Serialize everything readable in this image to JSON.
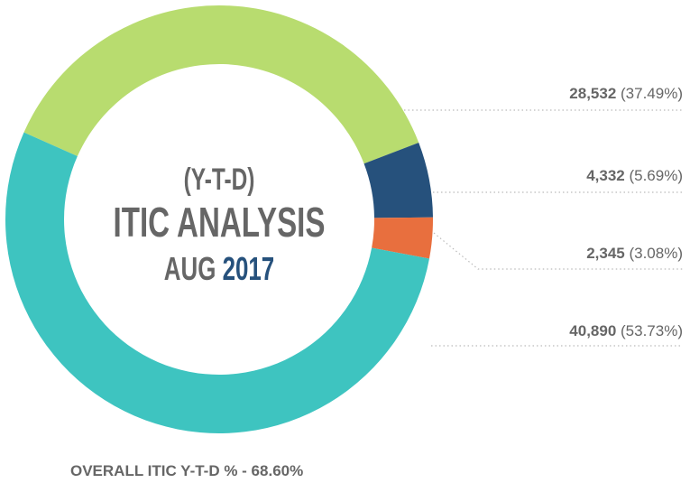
{
  "chart_data": {
    "type": "donut",
    "center_text": [
      "(Y-T-D)",
      "ITIC ANALYSIS",
      "AUG",
      "2017"
    ],
    "footer": "OVERALL ITIC Y-T-D % - 68.60%",
    "values": [
      28532,
      4332,
      2345,
      40890
    ],
    "value_labels": [
      "28,532",
      "4,332",
      "2,345",
      "40,890"
    ],
    "percents": [
      37.49,
      5.69,
      3.08,
      53.73
    ],
    "percent_labels": [
      "(37.49%)",
      "(5.69%)",
      "(3.08%)",
      "(53.73%)"
    ],
    "colors": [
      "#b8dc6f",
      "#26517c",
      "#e86f3e",
      "#3ec4c0"
    ]
  }
}
